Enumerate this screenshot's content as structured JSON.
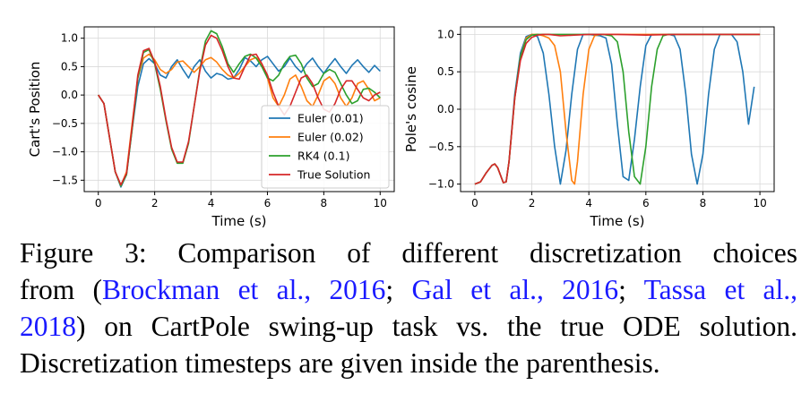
{
  "figure": {
    "caption": {
      "line1": "Figure 3:  Comparison of different discretization choices",
      "line2_pre": "from (",
      "cite1": "Brockman et al., 2016",
      "sep1": "; ",
      "cite2": "Gal et al., 2016",
      "sep2": "; ",
      "cite3": "Tassa et al.,",
      "cite3b": "2018",
      "line3_post": ") on CartPole swing-up task vs. the true ODE solution.",
      "line4": "Discretization timesteps are given inside the parenthesis."
    }
  },
  "colors": {
    "euler_001": "#1f77b4",
    "euler_002": "#ff7f0e",
    "rk4": "#2ca02c",
    "true_solution": "#d62728",
    "grid": "#d9d9d9"
  },
  "chart_data": [
    {
      "type": "line",
      "title": "",
      "xlabel": "Time (s)",
      "ylabel": "Cart's Position",
      "xlim": [
        -0.5,
        10.5
      ],
      "ylim": [
        -1.7,
        1.2
      ],
      "xticks": [
        0,
        2,
        4,
        6,
        8,
        10
      ],
      "yticks": [
        -1.5,
        -1.0,
        -0.5,
        0.0,
        0.5,
        1.0
      ],
      "ytick_labels": [
        "−1.5",
        "−1.0",
        "−0.5",
        "0.0",
        "0.5",
        "1.0"
      ],
      "xtick_labels": [
        "0",
        "2",
        "4",
        "6",
        "8",
        "10"
      ],
      "grid": true,
      "legend": "lower-right",
      "series": [
        {
          "name": "Euler (0.01)",
          "color_key": "euler_001",
          "x": [
            0,
            0.2,
            0.4,
            0.6,
            0.8,
            1.0,
            1.2,
            1.4,
            1.6,
            1.8,
            2.0,
            2.2,
            2.4,
            2.6,
            2.8,
            3.0,
            3.2,
            3.4,
            3.6,
            3.8,
            4.0,
            4.2,
            4.4,
            4.6,
            4.8,
            5.0,
            5.2,
            5.4,
            5.6,
            5.8,
            6.0,
            6.2,
            6.4,
            6.6,
            6.8,
            7.0,
            7.2,
            7.4,
            7.6,
            7.8,
            8.0,
            8.2,
            8.4,
            8.6,
            8.8,
            9.0,
            9.2,
            9.4,
            9.6,
            9.8,
            10.0
          ],
          "y": [
            0,
            -0.15,
            -0.75,
            -1.35,
            -1.62,
            -1.4,
            -0.6,
            0.15,
            0.55,
            0.64,
            0.55,
            0.35,
            0.3,
            0.5,
            0.62,
            0.45,
            0.3,
            0.5,
            0.62,
            0.42,
            0.3,
            0.38,
            0.35,
            0.28,
            0.3,
            0.45,
            0.66,
            0.6,
            0.5,
            0.62,
            0.68,
            0.55,
            0.42,
            0.5,
            0.65,
            0.5,
            0.4,
            0.55,
            0.65,
            0.5,
            0.38,
            0.52,
            0.64,
            0.5,
            0.38,
            0.52,
            0.62,
            0.5,
            0.4,
            0.52,
            0.42
          ]
        },
        {
          "name": "Euler (0.02)",
          "color_key": "euler_002",
          "x": [
            0,
            0.2,
            0.4,
            0.6,
            0.8,
            1.0,
            1.2,
            1.4,
            1.6,
            1.8,
            2.0,
            2.2,
            2.4,
            2.6,
            2.8,
            3.0,
            3.2,
            3.4,
            3.6,
            3.8,
            4.0,
            4.2,
            4.4,
            4.6,
            4.8,
            5.0,
            5.2,
            5.4,
            5.6,
            5.8,
            6.0,
            6.2,
            6.4,
            6.6,
            6.8,
            7.0,
            7.2,
            7.4,
            7.6,
            7.8,
            8.0,
            8.2,
            8.4,
            8.6,
            8.8,
            9.0,
            9.2,
            9.4,
            9.6,
            9.8,
            10.0
          ],
          "y": [
            0,
            -0.15,
            -0.75,
            -1.35,
            -1.6,
            -1.35,
            -0.5,
            0.3,
            0.65,
            0.72,
            0.62,
            0.45,
            0.38,
            0.45,
            0.58,
            0.6,
            0.5,
            0.4,
            0.5,
            0.62,
            0.66,
            0.58,
            0.45,
            0.35,
            0.3,
            0.38,
            0.5,
            0.62,
            0.66,
            0.55,
            0.3,
            -0.05,
            -0.2,
            0.0,
            0.28,
            0.35,
            0.15,
            -0.1,
            -0.2,
            0.0,
            0.25,
            0.32,
            0.2,
            -0.05,
            -0.2,
            -0.05,
            0.2,
            0.25,
            0.1,
            -0.1,
            -0.05
          ]
        },
        {
          "name": "RK4 (0.1)",
          "color_key": "rk4",
          "x": [
            0,
            0.2,
            0.4,
            0.6,
            0.8,
            1.0,
            1.2,
            1.4,
            1.6,
            1.8,
            2.0,
            2.2,
            2.4,
            2.6,
            2.8,
            3.0,
            3.2,
            3.4,
            3.6,
            3.8,
            4.0,
            4.2,
            4.4,
            4.6,
            4.8,
            5.0,
            5.2,
            5.4,
            5.6,
            5.8,
            6.0,
            6.2,
            6.4,
            6.6,
            6.8,
            7.0,
            7.2,
            7.4,
            7.6,
            7.8,
            8.0,
            8.2,
            8.4,
            8.6,
            8.8,
            9.0,
            9.2,
            9.4,
            9.6,
            9.8,
            10.0
          ],
          "y": [
            0,
            -0.15,
            -0.75,
            -1.35,
            -1.6,
            -1.4,
            -0.6,
            0.3,
            0.75,
            0.8,
            0.55,
            0.1,
            -0.45,
            -0.95,
            -1.2,
            -1.2,
            -0.85,
            -0.2,
            0.45,
            0.95,
            1.13,
            1.08,
            0.85,
            0.55,
            0.4,
            0.55,
            0.68,
            0.72,
            0.65,
            0.5,
            0.3,
            0.25,
            0.35,
            0.55,
            0.68,
            0.7,
            0.55,
            0.3,
            0.15,
            0.2,
            0.38,
            0.45,
            0.4,
            0.2,
            0.0,
            -0.15,
            -0.1,
            0.1,
            0.12,
            0.05,
            -0.05
          ]
        },
        {
          "name": "True Solution",
          "color_key": "true_solution",
          "x": [
            0,
            0.2,
            0.4,
            0.6,
            0.8,
            1.0,
            1.2,
            1.4,
            1.6,
            1.8,
            2.0,
            2.2,
            2.4,
            2.6,
            2.8,
            3.0,
            3.2,
            3.4,
            3.6,
            3.8,
            4.0,
            4.2,
            4.4,
            4.6,
            4.8,
            5.0,
            5.2,
            5.4,
            5.6,
            5.8,
            6.0,
            6.2,
            6.4,
            6.6,
            6.8,
            7.0,
            7.2,
            7.4,
            7.6,
            7.8,
            8.0,
            8.2,
            8.4,
            8.6,
            8.8,
            9.0,
            9.2,
            9.4,
            9.6,
            9.8,
            10.0
          ],
          "y": [
            0,
            -0.15,
            -0.75,
            -1.35,
            -1.58,
            -1.38,
            -0.55,
            0.35,
            0.78,
            0.82,
            0.58,
            0.15,
            -0.42,
            -0.92,
            -1.18,
            -1.18,
            -0.82,
            -0.2,
            0.42,
            0.88,
            1.05,
            1.0,
            0.78,
            0.5,
            0.3,
            0.28,
            0.5,
            0.7,
            0.72,
            0.55,
            0.35,
            0.05,
            -0.2,
            -0.35,
            -0.2,
            0.05,
            0.3,
            0.35,
            0.2,
            -0.05,
            -0.25,
            -0.3,
            -0.15,
            0.1,
            0.25,
            0.25,
            0.1,
            -0.05,
            -0.1,
            0.0,
            0.05
          ]
        }
      ]
    },
    {
      "type": "line",
      "title": "",
      "xlabel": "Time (s)",
      "ylabel": "Pole's cosine",
      "xlim": [
        -0.5,
        10.5
      ],
      "ylim": [
        -1.1,
        1.1
      ],
      "xticks": [
        0,
        2,
        4,
        6,
        8,
        10
      ],
      "yticks": [
        -1.0,
        -0.5,
        0.0,
        0.5,
        1.0
      ],
      "ytick_labels": [
        "−1.0",
        "−0.5",
        "0.0",
        "0.5",
        "1.0"
      ],
      "xtick_labels": [
        "0",
        "2",
        "4",
        "6",
        "8",
        "10"
      ],
      "grid": true,
      "legend": "none",
      "series": [
        {
          "name": "Euler (0.01)",
          "color_key": "euler_001",
          "x": [
            0,
            0.2,
            0.4,
            0.6,
            0.7,
            0.8,
            1.0,
            1.1,
            1.2,
            1.4,
            1.6,
            1.8,
            2.0,
            2.2,
            2.4,
            2.6,
            2.8,
            3.0,
            3.2,
            3.4,
            3.6,
            3.8,
            4.0,
            4.2,
            4.4,
            4.6,
            4.8,
            5.0,
            5.2,
            5.4,
            5.6,
            5.8,
            6.0,
            6.2,
            6.4,
            6.6,
            6.8,
            7.0,
            7.2,
            7.4,
            7.6,
            7.8,
            8.0,
            8.2,
            8.4,
            8.6,
            8.8,
            9.0,
            9.2,
            9.4,
            9.6,
            9.8
          ],
          "y": [
            -1,
            -0.97,
            -0.85,
            -0.75,
            -0.73,
            -0.78,
            -0.98,
            -0.97,
            -0.7,
            0.2,
            0.75,
            0.97,
            1.0,
            0.97,
            0.75,
            0.2,
            -0.5,
            -1.0,
            -0.55,
            0.2,
            0.8,
            1.0,
            1.0,
            0.99,
            0.98,
            0.95,
            0.6,
            -0.2,
            -0.9,
            -0.95,
            -0.4,
            0.3,
            0.85,
            1.0,
            1.0,
            1.0,
            1.0,
            0.98,
            0.8,
            0.2,
            -0.6,
            -1.0,
            -0.6,
            0.2,
            0.8,
            1.0,
            1.0,
            1.0,
            0.9,
            0.5,
            -0.2,
            0.3
          ]
        },
        {
          "name": "Euler (0.02)",
          "color_key": "euler_002",
          "x": [
            0,
            0.2,
            0.4,
            0.6,
            0.7,
            0.8,
            1.0,
            1.1,
            1.2,
            1.4,
            1.6,
            1.8,
            2.0,
            2.2,
            2.4,
            2.6,
            2.8,
            3.0,
            3.2,
            3.4,
            3.5,
            3.6,
            3.8,
            4.0,
            4.2,
            4.4,
            4.6,
            4.8,
            5.0,
            5.5,
            6.0,
            7.0,
            8.0,
            9.0,
            10.0
          ],
          "y": [
            -1,
            -0.97,
            -0.85,
            -0.75,
            -0.73,
            -0.78,
            -0.98,
            -0.97,
            -0.7,
            0.15,
            0.7,
            0.95,
            1.0,
            1.0,
            0.98,
            0.95,
            0.85,
            0.5,
            -0.3,
            -0.95,
            -1.0,
            -0.7,
            0.2,
            0.8,
            0.98,
            1.0,
            1.0,
            1.0,
            1.0,
            1.0,
            1.0,
            1.0,
            1.0,
            1.0,
            1.0
          ]
        },
        {
          "name": "RK4 (0.1)",
          "color_key": "rk4",
          "x": [
            0,
            0.2,
            0.4,
            0.6,
            0.7,
            0.8,
            1.0,
            1.1,
            1.2,
            1.4,
            1.6,
            1.8,
            2.0,
            2.2,
            2.4,
            2.6,
            2.8,
            3.0,
            3.5,
            4.0,
            4.5,
            4.8,
            5.0,
            5.2,
            5.4,
            5.6,
            5.8,
            6.0,
            6.2,
            6.4,
            6.6,
            6.8,
            7.0,
            7.5,
            8.0,
            9.0,
            10.0
          ],
          "y": [
            -1,
            -0.97,
            -0.85,
            -0.75,
            -0.73,
            -0.78,
            -0.98,
            -0.97,
            -0.7,
            0.15,
            0.7,
            0.93,
            0.99,
            1.0,
            1.0,
            1.0,
            1.0,
            1.0,
            1.0,
            1.0,
            1.0,
            0.98,
            0.9,
            0.5,
            -0.3,
            -0.9,
            -1.0,
            -0.5,
            0.3,
            0.8,
            0.98,
            1.0,
            1.0,
            1.0,
            1.0,
            1.0,
            1.0
          ]
        },
        {
          "name": "True Solution",
          "color_key": "true_solution",
          "x": [
            0,
            0.2,
            0.4,
            0.6,
            0.7,
            0.8,
            1.0,
            1.1,
            1.2,
            1.4,
            1.6,
            1.8,
            2.0,
            2.2,
            2.4,
            2.6,
            2.8,
            3.0,
            3.5,
            4.0,
            5.0,
            6.0,
            7.0,
            8.0,
            9.0,
            10.0
          ],
          "y": [
            -1,
            -0.97,
            -0.85,
            -0.75,
            -0.73,
            -0.78,
            -0.98,
            -0.97,
            -0.7,
            0.15,
            0.65,
            0.88,
            0.96,
            0.99,
            1.0,
            1.0,
            0.99,
            0.98,
            0.99,
            1.0,
            1.0,
            0.99,
            1.0,
            1.0,
            1.0,
            1.0
          ]
        }
      ]
    }
  ]
}
